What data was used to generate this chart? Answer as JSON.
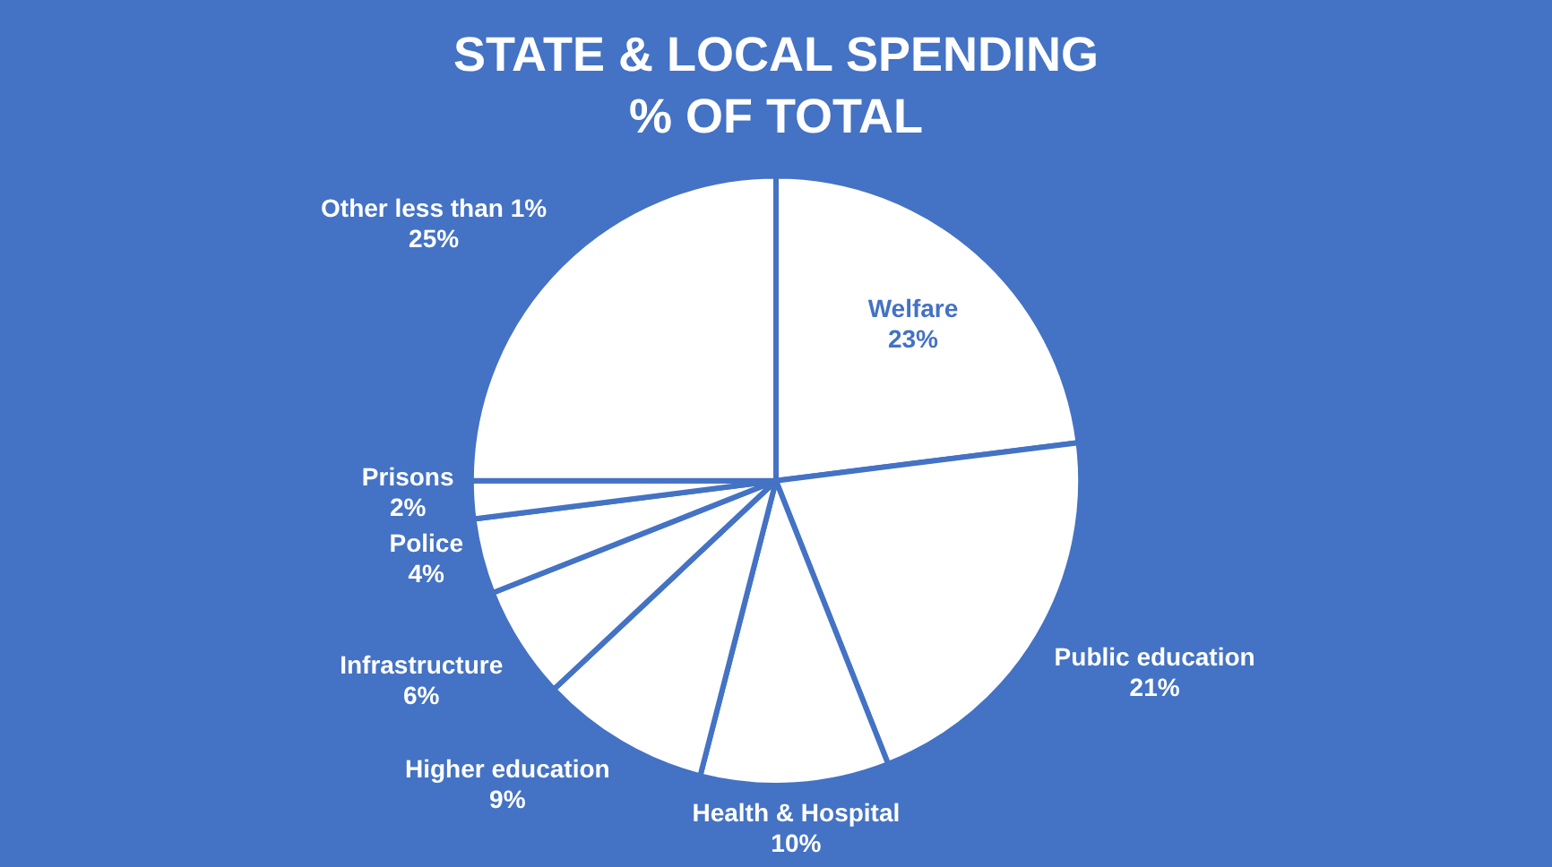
{
  "chart_data": {
    "type": "pie",
    "title": "STATE & LOCAL SPENDING",
    "subtitle": "% OF TOTAL",
    "categories": [
      "Welfare",
      "Public education",
      "Health & Hospital",
      "Higher education",
      "Infrastructure",
      "Police",
      "Prisons",
      "Other less than 1%"
    ],
    "values": [
      23,
      21,
      10,
      9,
      6,
      4,
      2,
      25
    ],
    "value_labels": [
      "23%",
      "21%",
      "10%",
      "9%",
      "6%",
      "4%",
      "2%",
      "25%"
    ],
    "colors": [
      "#ffffff",
      "#ffffff",
      "#ffffff",
      "#ffffff",
      "#ffffff",
      "#ffffff",
      "#ffffff",
      "#ffffff"
    ],
    "legend": false
  }
}
